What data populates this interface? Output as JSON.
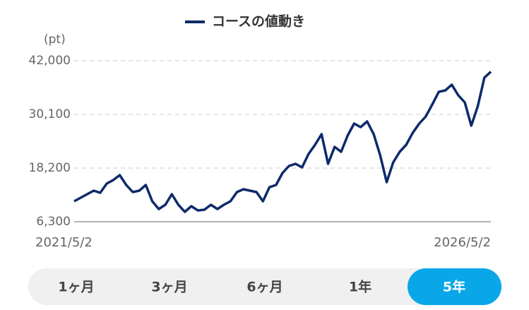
{
  "chart_data": {
    "type": "line",
    "legend": "コースの値動き",
    "y_unit": "(pt)",
    "color": "#0d2a6b",
    "grid": true,
    "ylim": [
      6300,
      42000
    ],
    "yticks": [
      {
        "value": 6300,
        "label": "6,300"
      },
      {
        "value": 18200,
        "label": "18,200"
      },
      {
        "value": 30100,
        "label": "30,100"
      },
      {
        "value": 42000,
        "label": "42,000"
      }
    ],
    "categories": [
      "2021/5/2",
      null,
      null,
      null,
      null,
      null,
      null,
      null,
      null,
      null,
      null,
      null,
      null,
      null,
      null,
      null,
      null,
      null,
      null,
      null,
      null,
      null,
      null,
      null,
      null,
      null,
      null,
      null,
      null,
      null,
      null,
      null,
      null,
      null,
      null,
      null,
      null,
      null,
      null,
      null,
      null,
      null,
      null,
      null,
      null,
      null,
      null,
      null,
      null,
      null,
      null,
      null,
      null,
      null,
      null,
      null,
      null,
      null,
      null,
      null,
      null,
      null,
      null,
      null,
      "2026/5/2"
    ],
    "values": [
      10840,
      11620,
      12400,
      13190,
      12720,
      14750,
      15540,
      16630,
      14440,
      12880,
      13190,
      14440,
      10840,
      9120,
      10060,
      12400,
      10060,
      8490,
      9740,
      8810,
      8960,
      10060,
      9120,
      10060,
      10840,
      12880,
      13500,
      13190,
      12880,
      10840,
      13970,
      14440,
      17110,
      18670,
      19140,
      18360,
      21330,
      23370,
      25710,
      19140,
      22900,
      21800,
      25400,
      28060,
      27280,
      28530,
      25710,
      21020,
      15070,
      19450,
      21800,
      23370,
      26020,
      28060,
      29630,
      32290,
      35110,
      35420,
      36670,
      34320,
      32760,
      27590,
      31980,
      38240,
      39550
    ]
  },
  "tabs": {
    "items": [
      "1ヶ月",
      "3ヶ月",
      "6ヶ月",
      "1年",
      "5年"
    ],
    "selected": 4
  }
}
